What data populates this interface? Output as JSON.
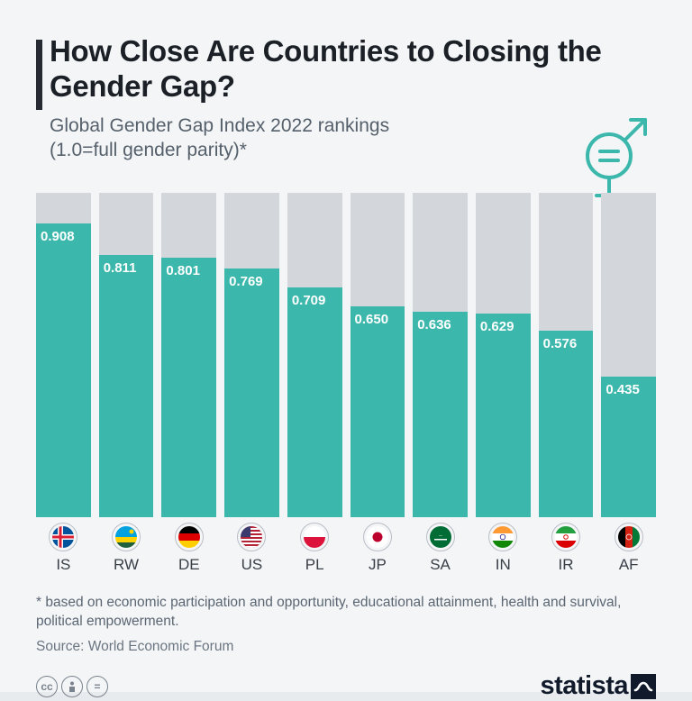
{
  "title": "How Close Are Countries to Closing the Gender Gap?",
  "subtitle_l1": "Global Gender Gap Index 2022 rankings",
  "subtitle_l2": "(1.0=full gender parity)*",
  "chart": {
    "type": "bar",
    "y_max": 1.0,
    "bar_color": "#3bb7ac",
    "bar_bg_color": "#d3d7db",
    "value_label_color": "#ffffff",
    "value_label_fontsize": 15,
    "x_label_fontsize": 17,
    "x_label_color": "#3a4048",
    "bars": [
      {
        "code": "IS",
        "value": 0.908,
        "label": "0.908",
        "flag": "is"
      },
      {
        "code": "RW",
        "value": 0.811,
        "label": "0.811",
        "flag": "rw"
      },
      {
        "code": "DE",
        "value": 0.801,
        "label": "0.801",
        "flag": "de"
      },
      {
        "code": "US",
        "value": 0.769,
        "label": "0.769",
        "flag": "us"
      },
      {
        "code": "PL",
        "value": 0.709,
        "label": "0.709",
        "flag": "pl"
      },
      {
        "code": "JP",
        "value": 0.65,
        "label": "0.650",
        "flag": "jp"
      },
      {
        "code": "SA",
        "value": 0.636,
        "label": "0.636",
        "flag": "sa"
      },
      {
        "code": "IN",
        "value": 0.629,
        "label": "0.629",
        "flag": "in"
      },
      {
        "code": "IR",
        "value": 0.576,
        "label": "0.576",
        "flag": "ir"
      },
      {
        "code": "AF",
        "value": 0.435,
        "label": "0.435",
        "flag": "af"
      }
    ]
  },
  "footnote": "* based on economic participation and opportunity, educational attainment, health and survival, political empowerment.",
  "source": "Source: World Economic Forum",
  "logo": "statista",
  "colors": {
    "page_bg": "#f3f5f7",
    "title_color": "#1b1f26",
    "subtitle_color": "#55606b",
    "accent_bar": "#262b33",
    "icon_stroke": "#3bb7ac"
  },
  "gender_icon": {
    "stroke": "#3bb7ac",
    "stroke_width": 4
  }
}
